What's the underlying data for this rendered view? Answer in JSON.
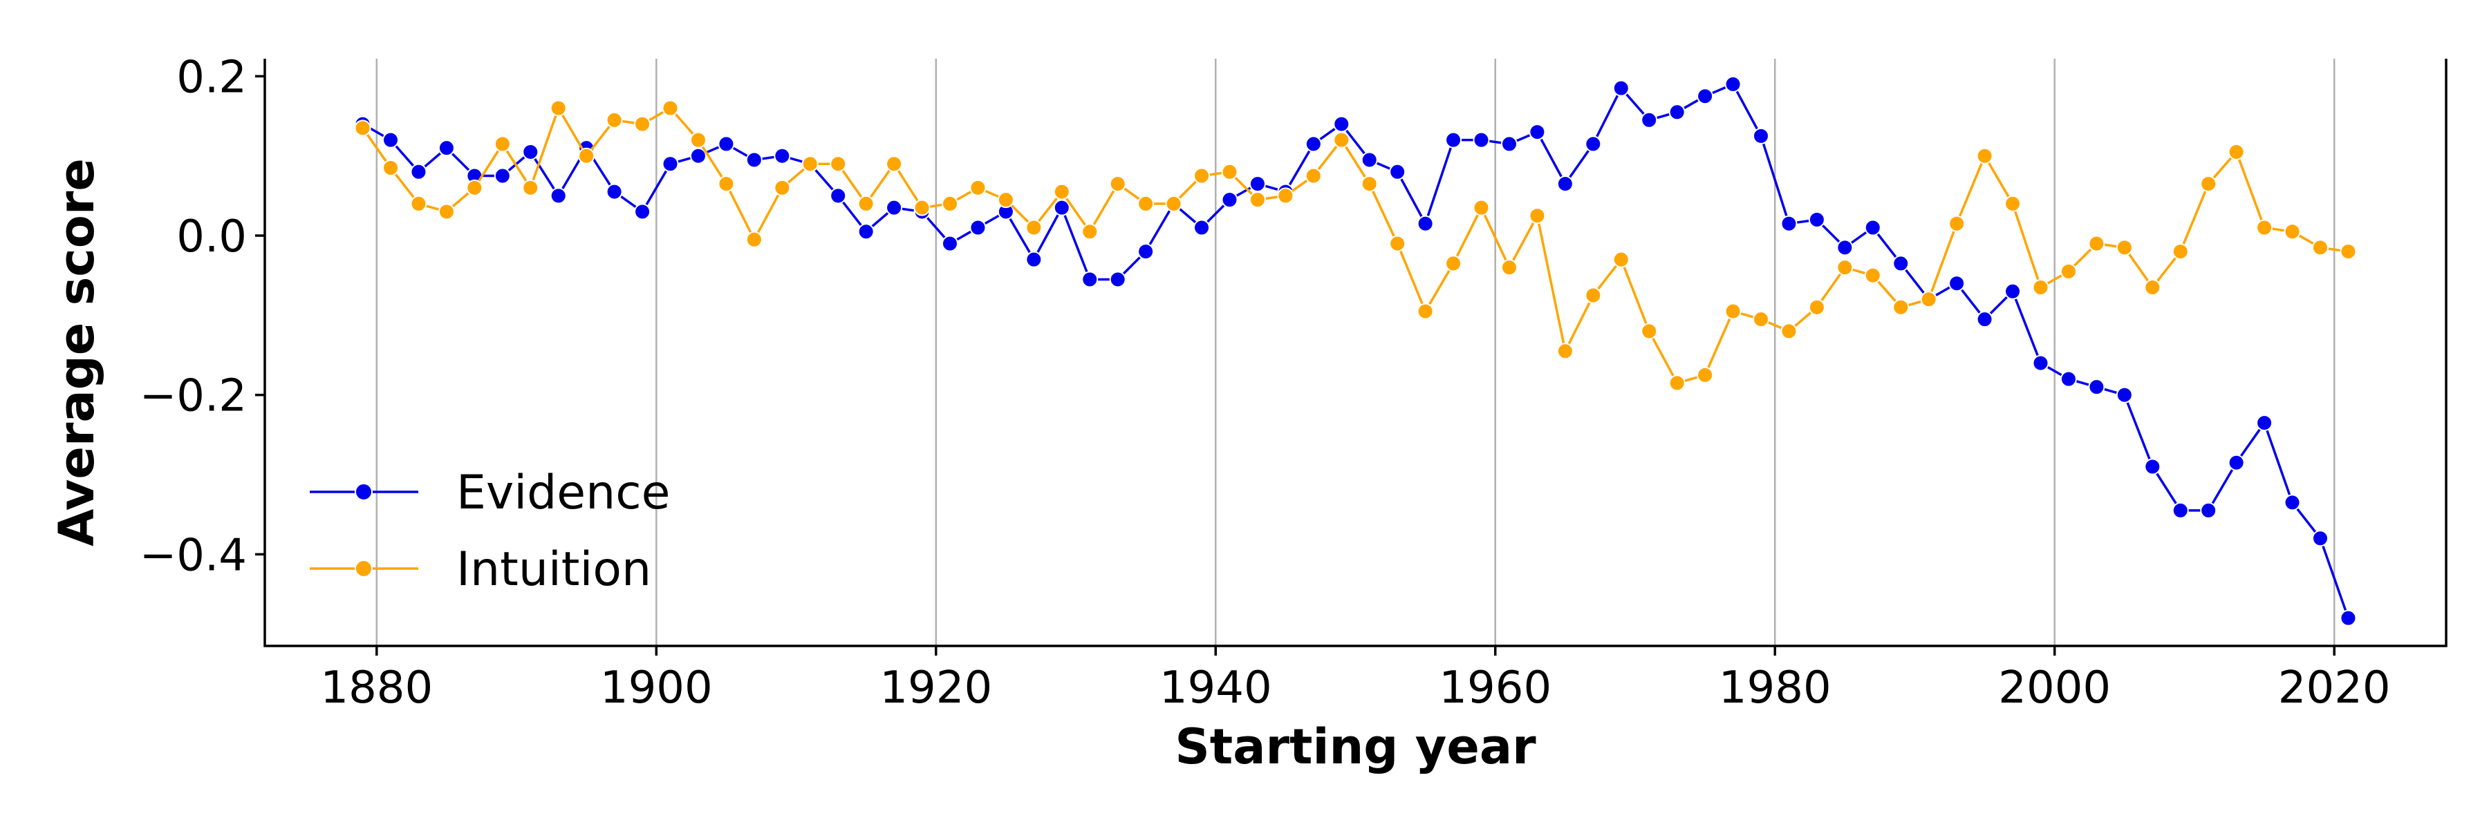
{
  "chart_data": {
    "type": "line",
    "title": "",
    "xlabel": "Starting year",
    "ylabel": "Average score",
    "xlim": [
      1872,
      2028
    ],
    "ylim": [
      -0.515,
      0.222
    ],
    "xticks": [
      1880,
      1900,
      1920,
      1940,
      1960,
      1980,
      2000,
      2020
    ],
    "xtick_labels": [
      "1880",
      "1900",
      "1920",
      "1940",
      "1960",
      "1980",
      "2000",
      "2020"
    ],
    "yticks": [
      0.2,
      0.0,
      -0.2,
      -0.4
    ],
    "ytick_labels": [
      "0.2",
      "0.0",
      "−0.2",
      "−0.4"
    ],
    "grid": "vertical",
    "legend_position": "lower-left",
    "series": [
      {
        "name": "Evidence",
        "color": "#0000ee",
        "x": [
          1879,
          1881,
          1883,
          1885,
          1887,
          1889,
          1891,
          1893,
          1895,
          1897,
          1899,
          1901,
          1903,
          1905,
          1907,
          1909,
          1911,
          1913,
          1915,
          1917,
          1919,
          1921,
          1923,
          1925,
          1927,
          1929,
          1931,
          1933,
          1935,
          1937,
          1939,
          1941,
          1943,
          1945,
          1947,
          1949,
          1951,
          1953,
          1955,
          1957,
          1959,
          1961,
          1963,
          1965,
          1967,
          1969,
          1971,
          1973,
          1975,
          1977,
          1979,
          1981,
          1983,
          1985,
          1987,
          1989,
          1991,
          1993,
          1995,
          1997,
          1999,
          2001,
          2003,
          2005,
          2007,
          2009,
          2011,
          2013,
          2015,
          2017,
          2019,
          2021
        ],
        "y": [
          0.14,
          0.12,
          0.08,
          0.11,
          0.075,
          0.075,
          0.105,
          0.05,
          0.11,
          0.055,
          0.03,
          0.09,
          0.1,
          0.115,
          0.095,
          0.1,
          0.09,
          0.05,
          0.005,
          0.035,
          0.03,
          -0.01,
          0.01,
          0.03,
          -0.03,
          0.035,
          -0.055,
          -0.055,
          -0.02,
          0.04,
          0.01,
          0.045,
          0.065,
          0.055,
          0.115,
          0.14,
          0.095,
          0.08,
          0.015,
          0.12,
          0.12,
          0.115,
          0.13,
          0.065,
          0.115,
          0.185,
          0.145,
          0.155,
          0.175,
          0.19,
          0.125,
          0.015,
          0.02,
          -0.015,
          0.01,
          -0.035,
          -0.08,
          -0.06,
          -0.105,
          -0.07,
          -0.16,
          -0.18,
          -0.19,
          -0.2,
          -0.29,
          -0.345,
          -0.345,
          -0.285,
          -0.235,
          -0.335,
          -0.38,
          -0.48
        ]
      },
      {
        "name": "Intuition",
        "color": "#ffa500",
        "x": [
          1879,
          1881,
          1883,
          1885,
          1887,
          1889,
          1891,
          1893,
          1895,
          1897,
          1899,
          1901,
          1903,
          1905,
          1907,
          1909,
          1911,
          1913,
          1915,
          1917,
          1919,
          1921,
          1923,
          1925,
          1927,
          1929,
          1931,
          1933,
          1935,
          1937,
          1939,
          1941,
          1943,
          1945,
          1947,
          1949,
          1951,
          1953,
          1955,
          1957,
          1959,
          1961,
          1963,
          1965,
          1967,
          1969,
          1971,
          1973,
          1975,
          1977,
          1979,
          1981,
          1983,
          1985,
          1987,
          1989,
          1991,
          1993,
          1995,
          1997,
          1999,
          2001,
          2003,
          2005,
          2007,
          2009,
          2011,
          2013,
          2015,
          2017,
          2019,
          2021
        ],
        "y": [
          0.135,
          0.085,
          0.04,
          0.03,
          0.06,
          0.115,
          0.06,
          0.16,
          0.1,
          0.145,
          0.14,
          0.16,
          0.12,
          0.065,
          -0.005,
          0.06,
          0.09,
          0.09,
          0.04,
          0.09,
          0.035,
          0.04,
          0.06,
          0.045,
          0.01,
          0.055,
          0.005,
          0.065,
          0.04,
          0.04,
          0.075,
          0.08,
          0.045,
          0.05,
          0.075,
          0.12,
          0.065,
          -0.01,
          -0.095,
          -0.035,
          0.035,
          -0.04,
          0.025,
          -0.145,
          -0.075,
          -0.03,
          -0.12,
          -0.185,
          -0.175,
          -0.095,
          -0.105,
          -0.12,
          -0.09,
          -0.04,
          -0.05,
          -0.09,
          -0.08,
          0.015,
          0.1,
          0.04,
          -0.065,
          -0.045,
          -0.01,
          -0.015,
          -0.065,
          -0.02,
          0.065,
          0.105,
          0.01,
          0.005,
          -0.015,
          -0.02
        ]
      }
    ]
  }
}
